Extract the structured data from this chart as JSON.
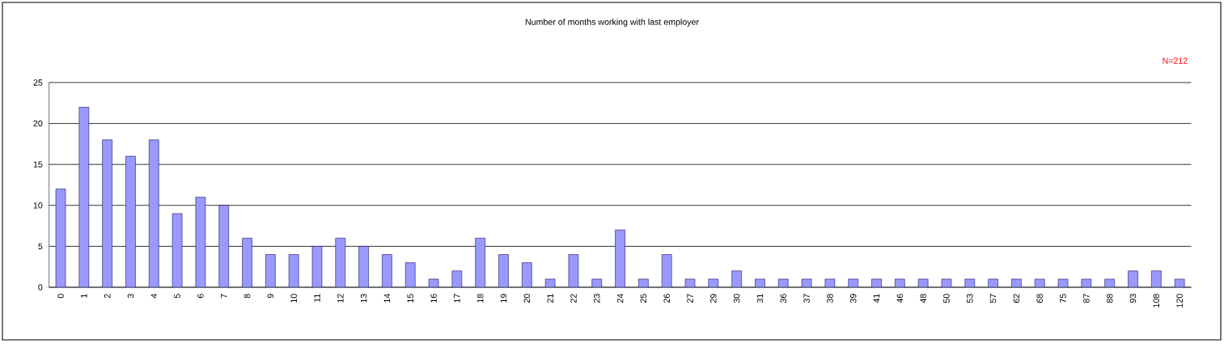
{
  "chart_data": {
    "type": "bar",
    "title": "Number of months working with last employer",
    "annotations": [
      "N=212"
    ],
    "categories": [
      "0",
      "1",
      "2",
      "3",
      "4",
      "5",
      "6",
      "7",
      "8",
      "9",
      "10",
      "11",
      "12",
      "13",
      "14",
      "15",
      "16",
      "17",
      "18",
      "19",
      "20",
      "21",
      "22",
      "23",
      "24",
      "25",
      "26",
      "27",
      "29",
      "30",
      "31",
      "36",
      "37",
      "38",
      "39",
      "41",
      "46",
      "48",
      "50",
      "53",
      "57",
      "62",
      "68",
      "75",
      "87",
      "88",
      "93",
      "108",
      "120"
    ],
    "values": [
      12,
      22,
      18,
      16,
      18,
      9,
      11,
      10,
      6,
      4,
      4,
      5,
      6,
      5,
      4,
      3,
      1,
      2,
      6,
      4,
      3,
      1,
      4,
      1,
      7,
      1,
      4,
      1,
      1,
      2,
      1,
      1,
      1,
      1,
      1,
      1,
      1,
      1,
      1,
      1,
      1,
      1,
      1,
      1,
      1,
      1,
      2,
      2,
      1
    ],
    "color": "#9999ff",
    "ylim": [
      0,
      25
    ],
    "yticks": [
      0,
      5,
      10,
      15,
      20,
      25
    ],
    "grid": "y"
  }
}
